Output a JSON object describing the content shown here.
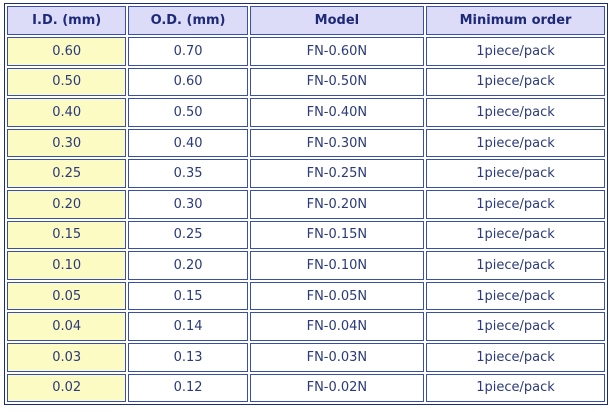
{
  "table": {
    "header": [
      "I.D. (mm)",
      "O.D. (mm)",
      "Model",
      "Minimum order"
    ],
    "rows": [
      [
        "0.60",
        "0.70",
        "FN-0.60N",
        "1piece/pack"
      ],
      [
        "0.50",
        "0.60",
        "FN-0.50N",
        "1piece/pack"
      ],
      [
        "0.40",
        "0.50",
        "FN-0.40N",
        "1piece/pack"
      ],
      [
        "0.30",
        "0.40",
        "FN-0.30N",
        "1piece/pack"
      ],
      [
        "0.25",
        "0.35",
        "FN-0.25N",
        "1piece/pack"
      ],
      [
        "0.20",
        "0.30",
        "FN-0.20N",
        "1piece/pack"
      ],
      [
        "0.15",
        "0.25",
        "FN-0.15N",
        "1piece/pack"
      ],
      [
        "0.10",
        "0.20",
        "FN-0.10N",
        "1piece/pack"
      ],
      [
        "0.05",
        "0.15",
        "FN-0.05N",
        "1piece/pack"
      ],
      [
        "0.04",
        "0.14",
        "FN-0.04N",
        "1piece/pack"
      ],
      [
        "0.03",
        "0.13",
        "FN-0.03N",
        "1piece/pack"
      ],
      [
        "0.02",
        "0.12",
        "FN-0.02N",
        "1piece/pack"
      ]
    ]
  }
}
